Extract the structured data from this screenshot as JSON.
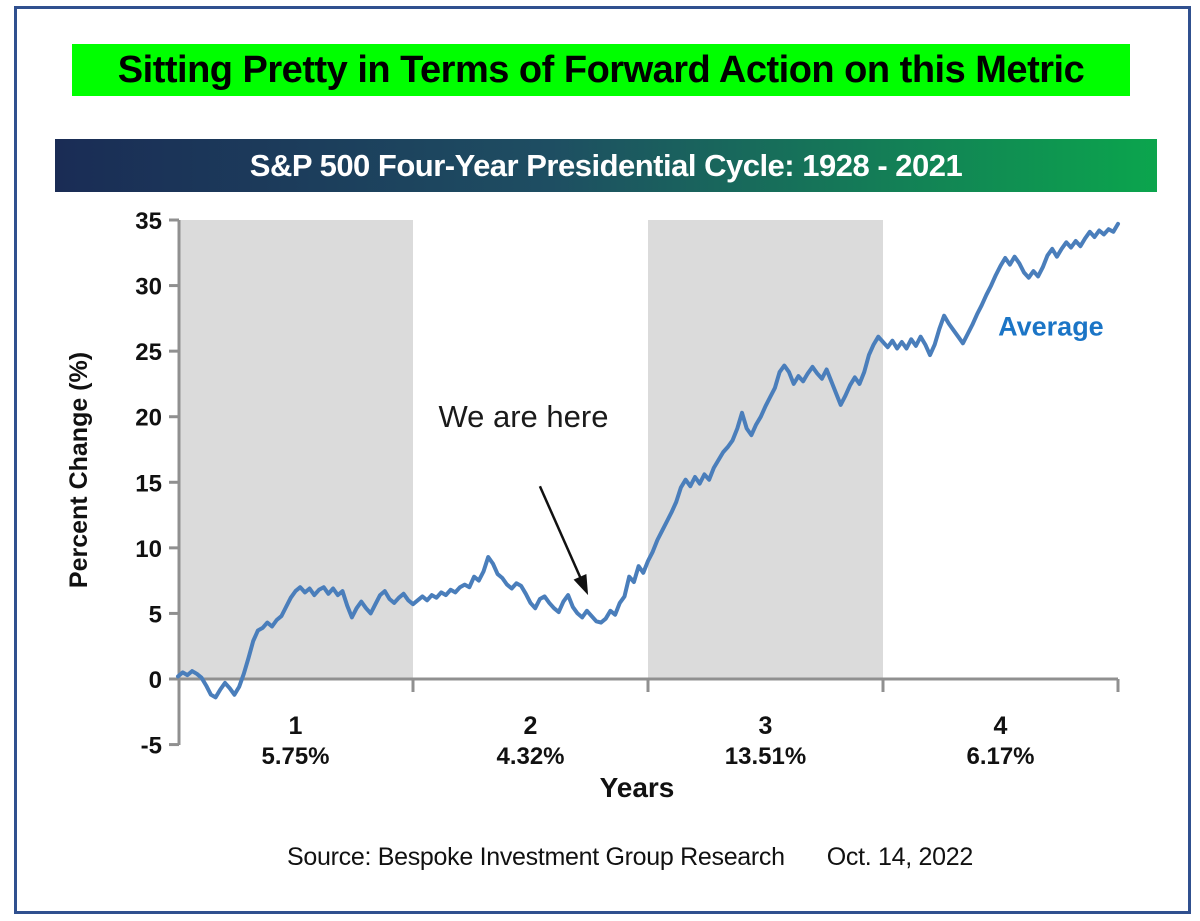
{
  "header": {
    "title": "Sitting Pretty in Terms of Forward Action on this Metric",
    "banner_title": "S&P 500 Four-Year Presidential Cycle: 1928 - 2021"
  },
  "footer": {
    "source": "Source: Bespoke Investment Group Research",
    "date": "Oct. 14, 2022"
  },
  "colors": {
    "title_highlight": "#00FF00",
    "banner_left": "#1A2C55",
    "banner_right": "#0BA54D",
    "frame_border": "#30508F",
    "line": "#4A7EBB",
    "legend_text": "#1B75C6",
    "band": "#DBDBDB",
    "axis": "#909090",
    "text": "#111111"
  },
  "chart_data": {
    "type": "line",
    "title": "S&P 500 Four-Year Presidential Cycle: 1928 - 2021",
    "xlabel": "Years",
    "ylabel": "Percent Change (%)",
    "xlim": [
      0,
      4
    ],
    "ylim": [
      -5,
      35
    ],
    "yticks": [
      35,
      30,
      25,
      20,
      15,
      10,
      5,
      0,
      -5
    ],
    "grid": false,
    "legend_label": "Average",
    "legend_xy": [
      3.49,
      26.2
    ],
    "shaded_years": [
      [
        0,
        1
      ],
      [
        2,
        3
      ]
    ],
    "categories": [
      {
        "label": "1",
        "average": "5.75%"
      },
      {
        "label": "2",
        "average": "4.32%"
      },
      {
        "label": "3",
        "average": "13.51%"
      },
      {
        "label": "4",
        "average": "6.17%"
      }
    ],
    "annotation": {
      "text": "We are here",
      "text_xy": [
        1.47,
        19.2
      ],
      "arrow_start_xy": [
        1.54,
        14.7
      ],
      "arrow_tip_xy": [
        1.745,
        6.4
      ]
    },
    "series": [
      {
        "name": "Average",
        "points": [
          [
            0.0,
            0.2
          ],
          [
            0.02,
            0.5
          ],
          [
            0.04,
            0.3
          ],
          [
            0.06,
            0.6
          ],
          [
            0.08,
            0.4
          ],
          [
            0.1,
            0.1
          ],
          [
            0.12,
            -0.5
          ],
          [
            0.14,
            -1.2
          ],
          [
            0.16,
            -1.4
          ],
          [
            0.18,
            -0.8
          ],
          [
            0.2,
            -0.3
          ],
          [
            0.22,
            -0.7
          ],
          [
            0.24,
            -1.2
          ],
          [
            0.26,
            -0.6
          ],
          [
            0.28,
            0.4
          ],
          [
            0.3,
            1.6
          ],
          [
            0.32,
            2.9
          ],
          [
            0.34,
            3.7
          ],
          [
            0.36,
            3.9
          ],
          [
            0.38,
            4.3
          ],
          [
            0.4,
            4.0
          ],
          [
            0.42,
            4.5
          ],
          [
            0.44,
            4.8
          ],
          [
            0.46,
            5.5
          ],
          [
            0.48,
            6.2
          ],
          [
            0.5,
            6.7
          ],
          [
            0.52,
            7.0
          ],
          [
            0.54,
            6.6
          ],
          [
            0.56,
            6.9
          ],
          [
            0.58,
            6.4
          ],
          [
            0.6,
            6.8
          ],
          [
            0.62,
            7.0
          ],
          [
            0.64,
            6.5
          ],
          [
            0.66,
            6.9
          ],
          [
            0.68,
            6.4
          ],
          [
            0.7,
            6.7
          ],
          [
            0.72,
            5.6
          ],
          [
            0.74,
            4.7
          ],
          [
            0.76,
            5.4
          ],
          [
            0.78,
            5.9
          ],
          [
            0.8,
            5.4
          ],
          [
            0.82,
            5.0
          ],
          [
            0.84,
            5.7
          ],
          [
            0.86,
            6.4
          ],
          [
            0.88,
            6.7
          ],
          [
            0.9,
            6.1
          ],
          [
            0.92,
            5.8
          ],
          [
            0.94,
            6.2
          ],
          [
            0.96,
            6.5
          ],
          [
            0.98,
            6.0
          ],
          [
            1.0,
            5.7
          ],
          [
            1.02,
            6.0
          ],
          [
            1.04,
            6.3
          ],
          [
            1.06,
            6.0
          ],
          [
            1.08,
            6.4
          ],
          [
            1.1,
            6.2
          ],
          [
            1.12,
            6.6
          ],
          [
            1.14,
            6.4
          ],
          [
            1.16,
            6.8
          ],
          [
            1.18,
            6.6
          ],
          [
            1.2,
            7.0
          ],
          [
            1.22,
            7.2
          ],
          [
            1.24,
            7.0
          ],
          [
            1.26,
            7.8
          ],
          [
            1.28,
            7.5
          ],
          [
            1.3,
            8.2
          ],
          [
            1.32,
            9.3
          ],
          [
            1.34,
            8.8
          ],
          [
            1.36,
            8.0
          ],
          [
            1.38,
            7.7
          ],
          [
            1.4,
            7.2
          ],
          [
            1.42,
            6.9
          ],
          [
            1.44,
            7.3
          ],
          [
            1.46,
            7.1
          ],
          [
            1.48,
            6.5
          ],
          [
            1.5,
            5.8
          ],
          [
            1.52,
            5.4
          ],
          [
            1.54,
            6.1
          ],
          [
            1.56,
            6.3
          ],
          [
            1.58,
            5.8
          ],
          [
            1.6,
            5.4
          ],
          [
            1.62,
            5.1
          ],
          [
            1.64,
            5.9
          ],
          [
            1.66,
            6.4
          ],
          [
            1.68,
            5.5
          ],
          [
            1.7,
            5.0
          ],
          [
            1.72,
            4.7
          ],
          [
            1.74,
            5.2
          ],
          [
            1.76,
            4.8
          ],
          [
            1.78,
            4.4
          ],
          [
            1.8,
            4.3
          ],
          [
            1.82,
            4.6
          ],
          [
            1.84,
            5.2
          ],
          [
            1.86,
            4.9
          ],
          [
            1.88,
            5.8
          ],
          [
            1.9,
            6.3
          ],
          [
            1.92,
            7.8
          ],
          [
            1.94,
            7.4
          ],
          [
            1.96,
            8.6
          ],
          [
            1.98,
            8.1
          ],
          [
            2.0,
            9.0
          ],
          [
            2.02,
            9.7
          ],
          [
            2.04,
            10.6
          ],
          [
            2.06,
            11.3
          ],
          [
            2.08,
            12.0
          ],
          [
            2.1,
            12.7
          ],
          [
            2.12,
            13.5
          ],
          [
            2.14,
            14.6
          ],
          [
            2.16,
            15.2
          ],
          [
            2.18,
            14.7
          ],
          [
            2.2,
            15.4
          ],
          [
            2.22,
            14.9
          ],
          [
            2.24,
            15.6
          ],
          [
            2.26,
            15.2
          ],
          [
            2.28,
            16.1
          ],
          [
            2.3,
            16.7
          ],
          [
            2.32,
            17.3
          ],
          [
            2.34,
            17.7
          ],
          [
            2.36,
            18.2
          ],
          [
            2.38,
            19.1
          ],
          [
            2.4,
            20.3
          ],
          [
            2.42,
            19.1
          ],
          [
            2.44,
            18.6
          ],
          [
            2.46,
            19.4
          ],
          [
            2.48,
            20.0
          ],
          [
            2.5,
            20.8
          ],
          [
            2.52,
            21.5
          ],
          [
            2.54,
            22.2
          ],
          [
            2.56,
            23.4
          ],
          [
            2.58,
            23.9
          ],
          [
            2.6,
            23.4
          ],
          [
            2.62,
            22.5
          ],
          [
            2.64,
            23.1
          ],
          [
            2.66,
            22.7
          ],
          [
            2.68,
            23.3
          ],
          [
            2.7,
            23.8
          ],
          [
            2.72,
            23.3
          ],
          [
            2.74,
            22.9
          ],
          [
            2.76,
            23.6
          ],
          [
            2.78,
            22.7
          ],
          [
            2.8,
            21.8
          ],
          [
            2.82,
            20.9
          ],
          [
            2.84,
            21.6
          ],
          [
            2.86,
            22.4
          ],
          [
            2.88,
            23.0
          ],
          [
            2.9,
            22.5
          ],
          [
            2.92,
            23.4
          ],
          [
            2.94,
            24.7
          ],
          [
            2.96,
            25.5
          ],
          [
            2.98,
            26.1
          ],
          [
            3.0,
            25.7
          ],
          [
            3.02,
            25.3
          ],
          [
            3.04,
            25.8
          ],
          [
            3.06,
            25.2
          ],
          [
            3.08,
            25.7
          ],
          [
            3.1,
            25.2
          ],
          [
            3.12,
            25.9
          ],
          [
            3.14,
            25.4
          ],
          [
            3.16,
            26.1
          ],
          [
            3.18,
            25.5
          ],
          [
            3.2,
            24.7
          ],
          [
            3.22,
            25.5
          ],
          [
            3.24,
            26.7
          ],
          [
            3.26,
            27.7
          ],
          [
            3.28,
            27.1
          ],
          [
            3.3,
            26.6
          ],
          [
            3.32,
            26.1
          ],
          [
            3.34,
            25.6
          ],
          [
            3.36,
            26.3
          ],
          [
            3.38,
            27.0
          ],
          [
            3.4,
            27.8
          ],
          [
            3.42,
            28.5
          ],
          [
            3.44,
            29.3
          ],
          [
            3.46,
            30.0
          ],
          [
            3.48,
            30.8
          ],
          [
            3.5,
            31.5
          ],
          [
            3.52,
            32.1
          ],
          [
            3.54,
            31.6
          ],
          [
            3.56,
            32.2
          ],
          [
            3.58,
            31.7
          ],
          [
            3.6,
            31.0
          ],
          [
            3.62,
            30.6
          ],
          [
            3.64,
            31.1
          ],
          [
            3.66,
            30.7
          ],
          [
            3.68,
            31.4
          ],
          [
            3.7,
            32.3
          ],
          [
            3.72,
            32.8
          ],
          [
            3.74,
            32.2
          ],
          [
            3.76,
            32.8
          ],
          [
            3.78,
            33.3
          ],
          [
            3.8,
            32.9
          ],
          [
            3.82,
            33.4
          ],
          [
            3.84,
            33.0
          ],
          [
            3.86,
            33.6
          ],
          [
            3.88,
            34.1
          ],
          [
            3.9,
            33.7
          ],
          [
            3.92,
            34.2
          ],
          [
            3.94,
            33.9
          ],
          [
            3.96,
            34.3
          ],
          [
            3.98,
            34.1
          ],
          [
            4.0,
            34.7
          ]
        ]
      }
    ]
  }
}
